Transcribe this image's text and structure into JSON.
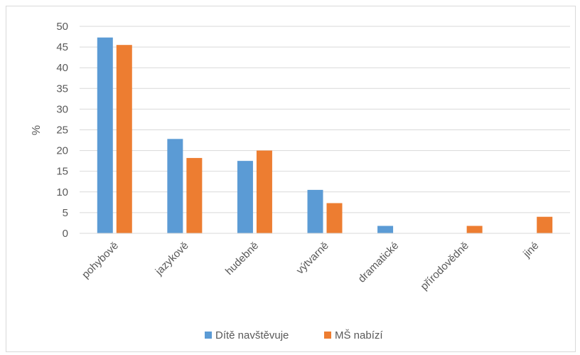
{
  "chart_data": {
    "type": "bar",
    "categories": [
      "pohybově",
      "jazykově",
      "hudebně",
      "výtvarně",
      "dramatické",
      "přírodovědně",
      "jiné"
    ],
    "series": [
      {
        "name": "Dítě navštěvuje",
        "color": "#5b9bd5",
        "values": [
          47.3,
          22.8,
          17.5,
          10.5,
          1.8,
          0,
          0
        ]
      },
      {
        "name": "MŠ nabízí",
        "color": "#ed7d31",
        "values": [
          45.5,
          18.2,
          20.0,
          7.3,
          0,
          1.8,
          4.0
        ]
      }
    ],
    "ylabel": "%",
    "xlabel": "",
    "ylim": [
      0,
      50
    ],
    "yticks": [
      0,
      5,
      10,
      15,
      20,
      25,
      30,
      35,
      40,
      45,
      50
    ],
    "grid": true,
    "legend_position": "bottom"
  }
}
